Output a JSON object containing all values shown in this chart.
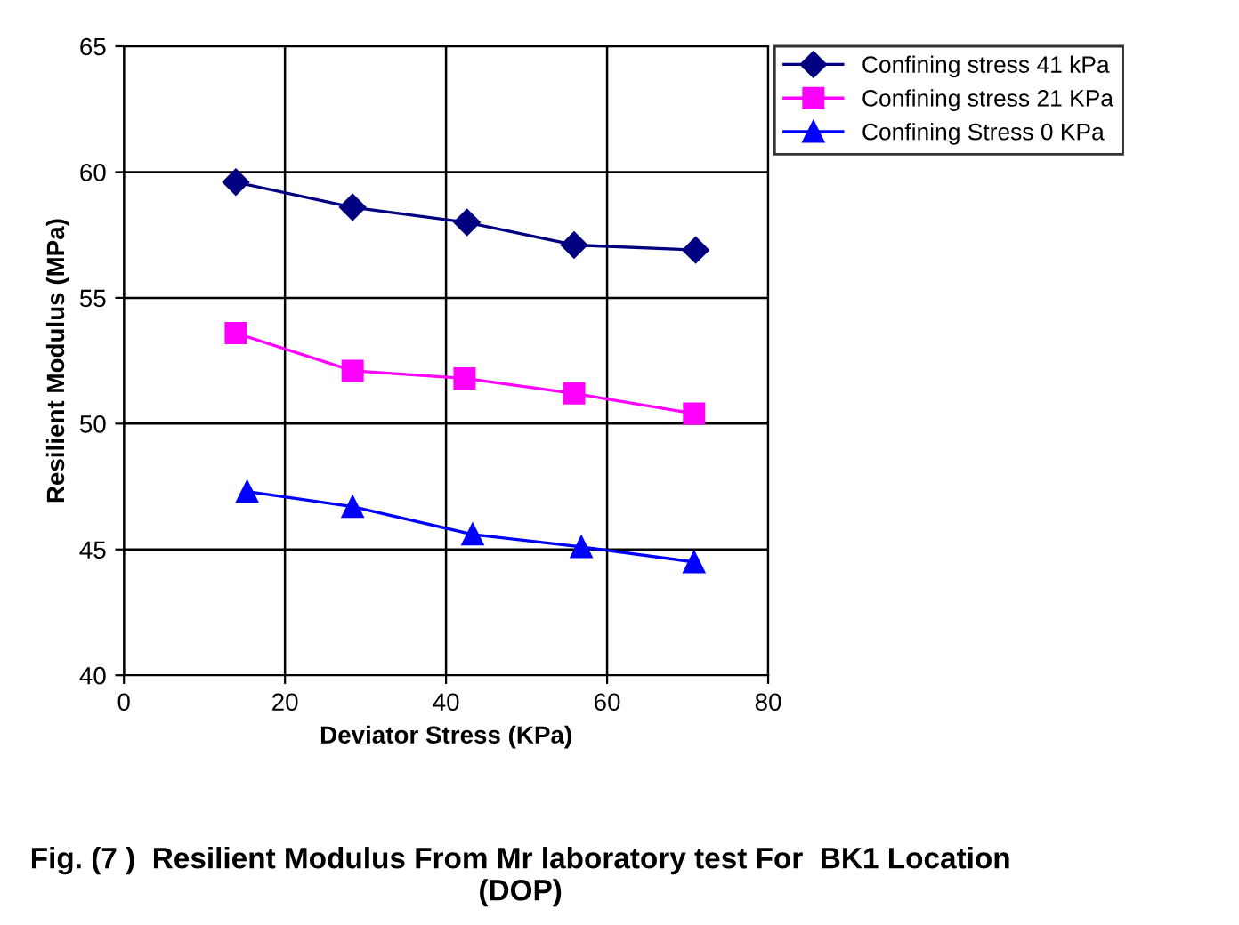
{
  "chart_data": {
    "type": "line",
    "title": "Fig. (7 )  Resilient Modulus From Mr laboratory test For  BK1 Location (DOP)",
    "xlabel": "Deviator Stress (KPa)",
    "ylabel": "Resilient Modulus (MPa)",
    "series": [
      {
        "name": "Confining stress 41 kPa",
        "color": "#000080",
        "marker": "diamond",
        "x": [
          13.9,
          28.4,
          42.6,
          55.9,
          71.0
        ],
        "values": [
          59.6,
          58.6,
          58.0,
          57.1,
          56.9
        ]
      },
      {
        "name": "Confining stress 21 KPa",
        "color": "#ff00ff",
        "marker": "square",
        "x": [
          13.9,
          28.4,
          42.3,
          55.9,
          70.8
        ],
        "values": [
          53.6,
          52.1,
          51.8,
          51.2,
          50.4
        ]
      },
      {
        "name": "Confining Stress 0 KPa",
        "color": "#0000ff",
        "marker": "triangle",
        "x": [
          15.3,
          28.4,
          43.3,
          56.8,
          70.8
        ],
        "values": [
          47.3,
          46.7,
          45.6,
          45.1,
          44.5
        ]
      }
    ],
    "xlim": [
      0,
      80
    ],
    "xticks": [
      0,
      20,
      40,
      60,
      80
    ],
    "ylim": [
      40,
      65
    ],
    "yticks": [
      40,
      45,
      50,
      55,
      60,
      65
    ],
    "grid": true,
    "legend": "top right",
    "line_style": "solid"
  }
}
